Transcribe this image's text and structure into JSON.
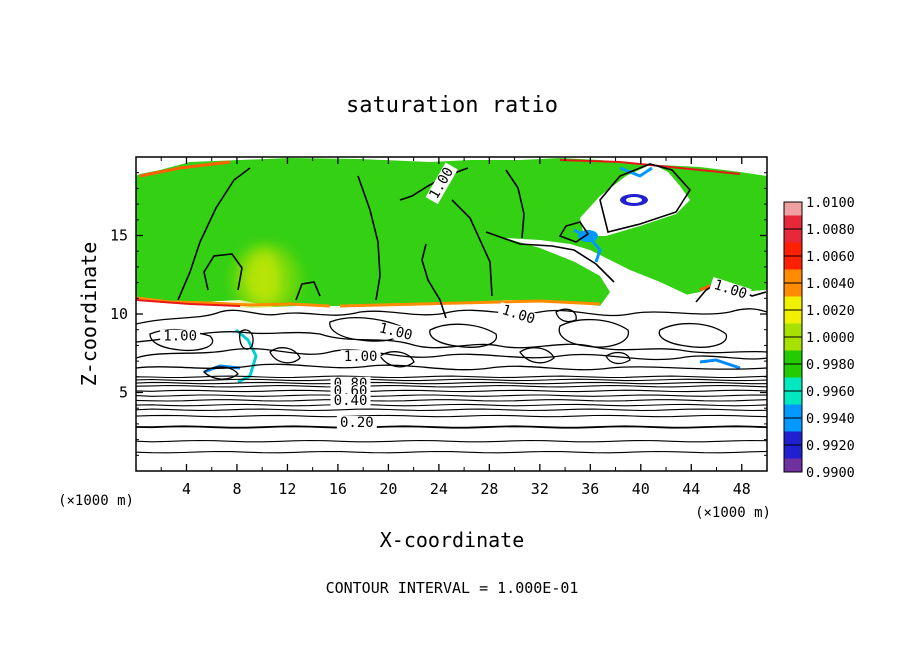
{
  "chart_data": {
    "type": "heatmap",
    "title": "saturation ratio",
    "xlabel": "X-coordinate",
    "ylabel": "Z-coordinate",
    "x_unit": "(×1000 m)",
    "z_unit": "(×1000 m)",
    "xlim": [
      0,
      50
    ],
    "ylim": [
      0,
      20
    ],
    "x_ticks": [
      "4",
      "8",
      "12",
      "16",
      "20",
      "24",
      "28",
      "32",
      "36",
      "40",
      "44",
      "48"
    ],
    "y_ticks": [
      "5",
      "10",
      "15"
    ],
    "footer": "CONTOUR INTERVAL = 1.000E-01",
    "colorbar": {
      "labels": [
        "1.0100",
        "1.0080",
        "1.0060",
        "1.0040",
        "1.0020",
        "1.0000",
        "0.9980",
        "0.9960",
        "0.9940",
        "0.9920",
        "0.9900"
      ],
      "colors": [
        "#f0a0a0",
        "#e8283a",
        "#ff2000",
        "#ff8c00",
        "#f0f000",
        "#a8e000",
        "#22cc00",
        "#00e8c0",
        "#0099ff",
        "#2020d0",
        "#7030a0"
      ]
    },
    "contour_labels": [
      {
        "text": "1.00",
        "x": 24.5,
        "z": 18.2
      },
      {
        "text": "1.00",
        "x": 47.0,
        "z": 11.3
      },
      {
        "text": "1.00",
        "x": 3.5,
        "z": 8.3
      },
      {
        "text": "1.00",
        "x": 20.5,
        "z": 8.6
      },
      {
        "text": "1.00",
        "x": 17.8,
        "z": 7.0
      },
      {
        "text": "1.00",
        "x": 30.2,
        "z": 9.7
      },
      {
        "text": "0.80",
        "x": 17.0,
        "z": 5.3
      },
      {
        "text": "0.60",
        "x": 17.0,
        "z": 4.8
      },
      {
        "text": "0.40",
        "x": 17.0,
        "z": 4.2
      },
      {
        "text": "0.20",
        "x": 17.5,
        "z": 2.8
      }
    ],
    "contour_levels_z": [
      1.2,
      1.9,
      2.8,
      3.5,
      3.9,
      4.2,
      4.5,
      4.8,
      5.1,
      5.4,
      5.6,
      5.8,
      6.0
    ]
  }
}
